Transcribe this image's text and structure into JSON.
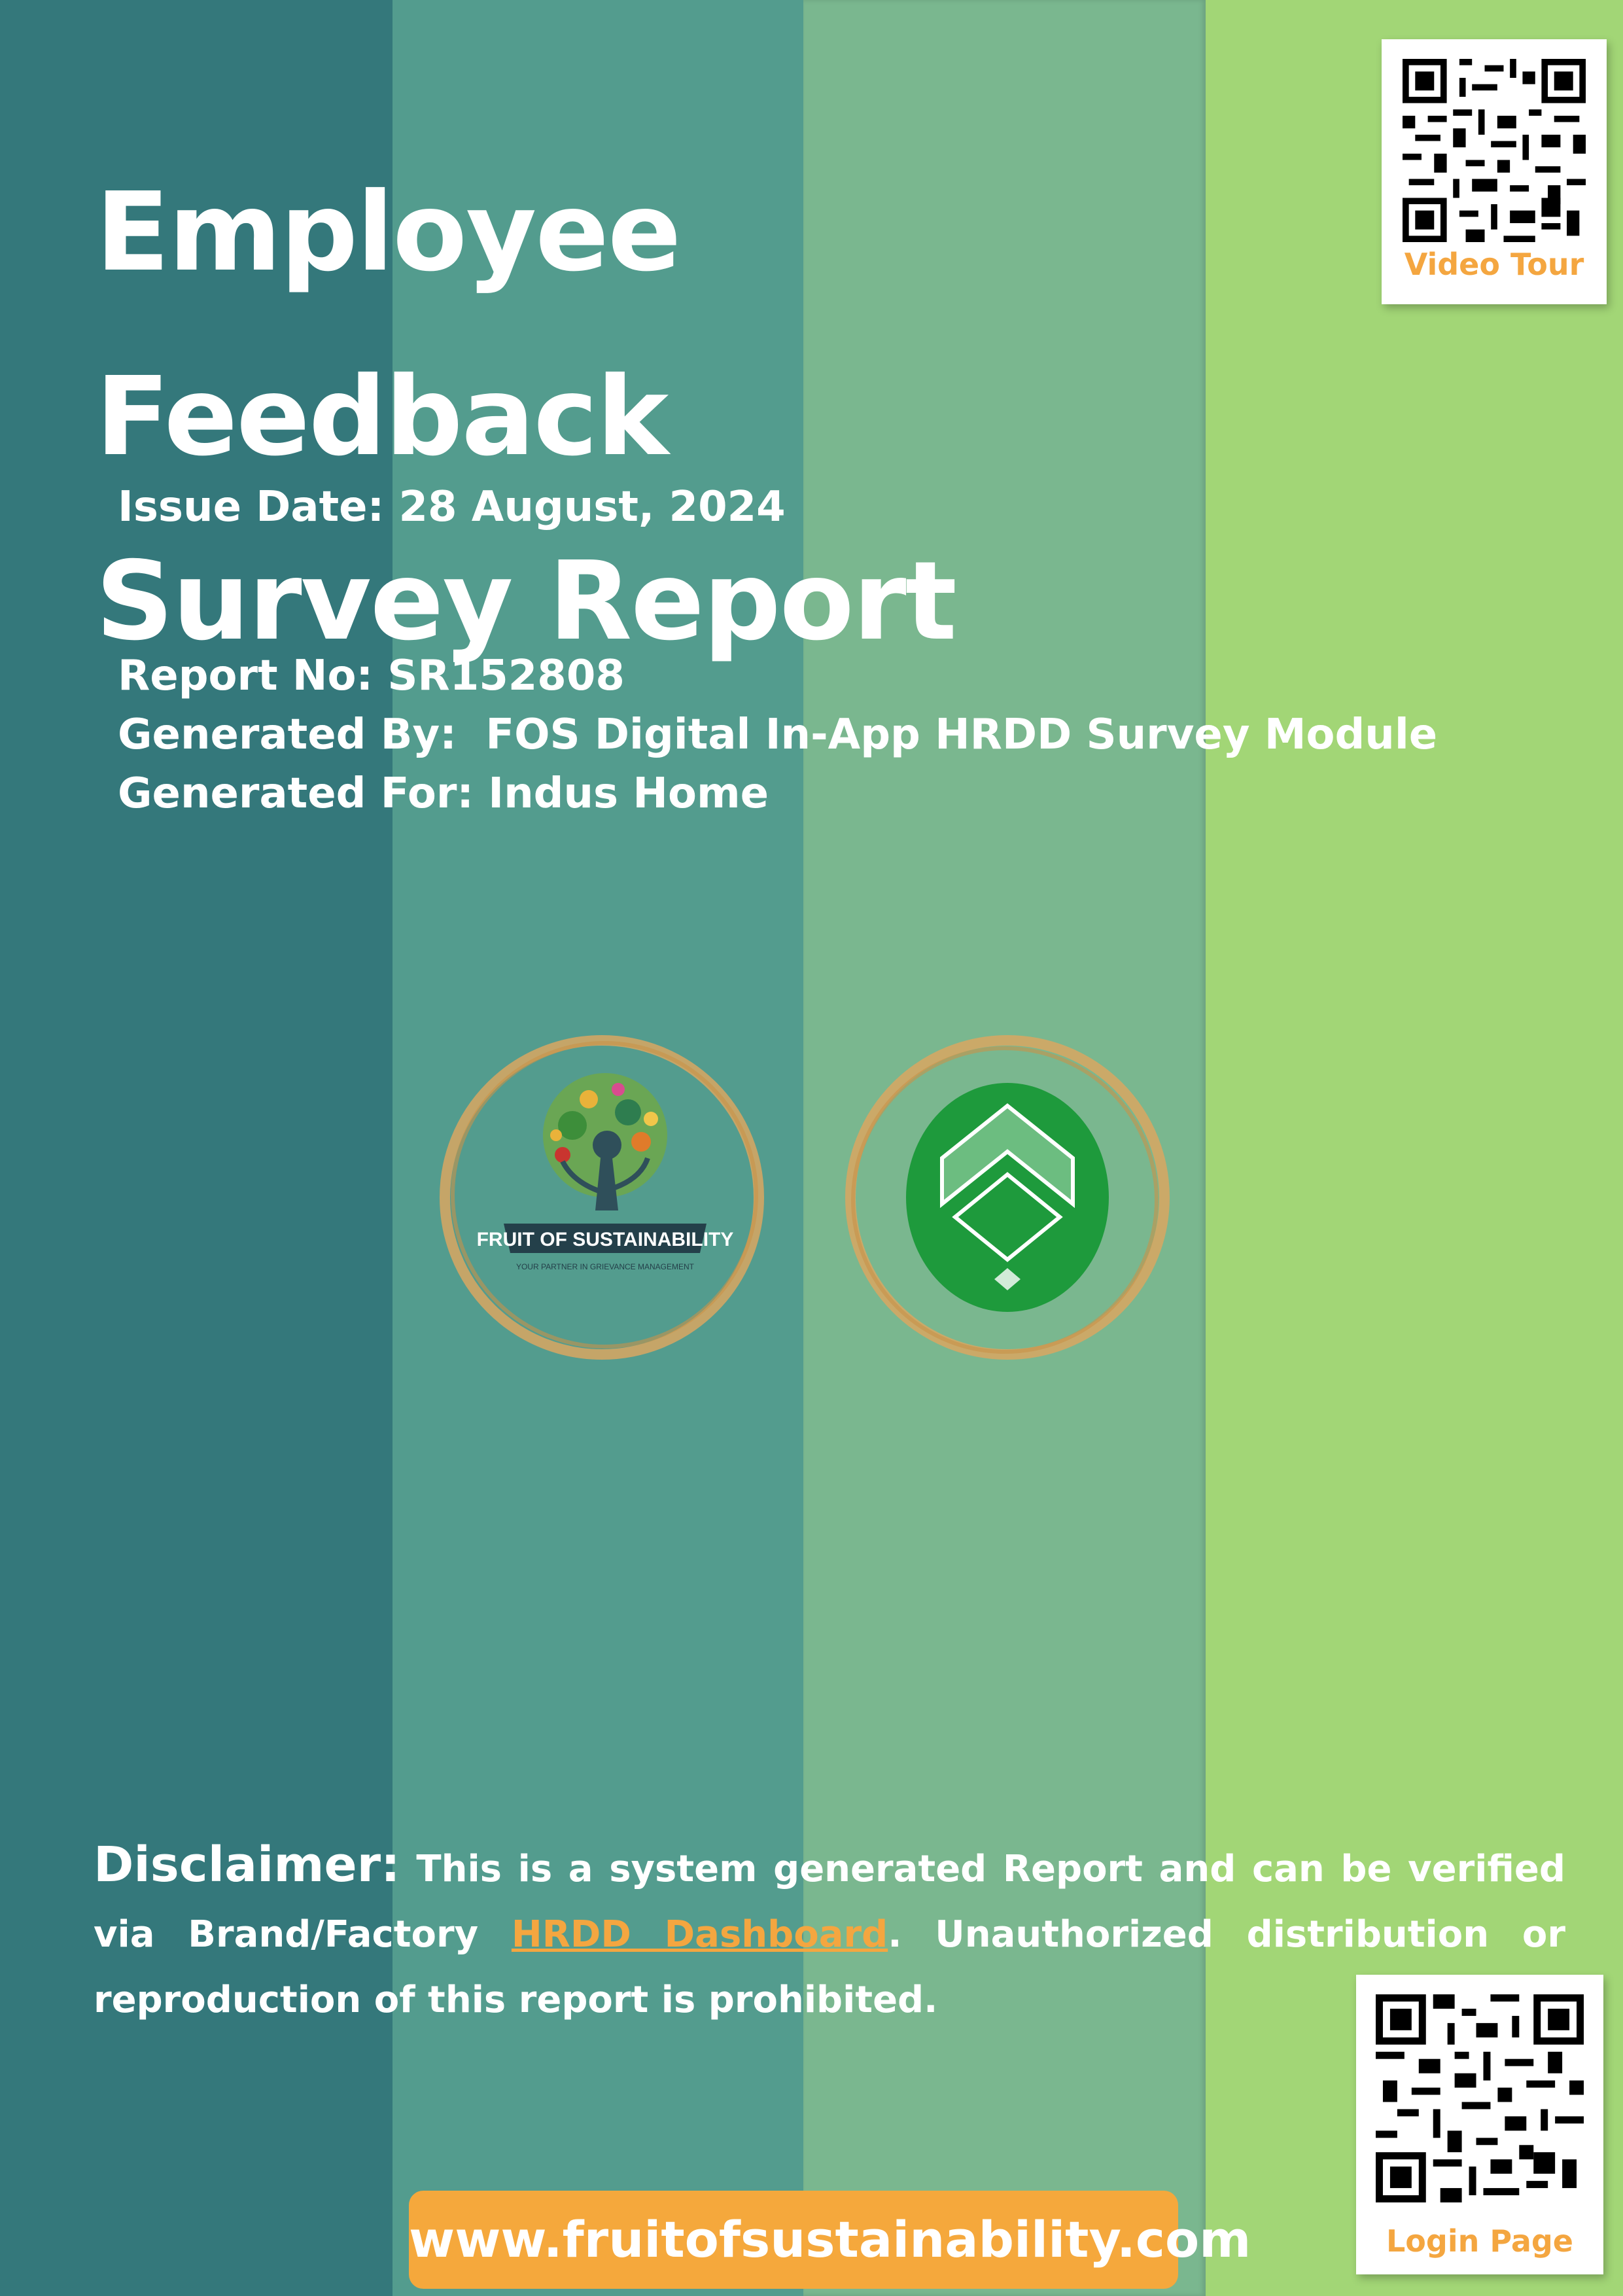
{
  "document": {
    "title_line1": "Employee Feedback",
    "title_line2": "Survey Report",
    "issue_date": "Issue Date: 28 August, 2024",
    "report_no": "Report No: SR152808",
    "generated_by": "Generated By:  FOS Digital In-App HRDD Survey Module",
    "generated_for": "Generated For: Indus Home"
  },
  "qr_codes": {
    "top_label": "Video Tour",
    "bottom_label": "Login Page"
  },
  "logos": {
    "fos_text": "FRUIT OF SUSTAINABILITY",
    "fos_tagline": "YOUR PARTNER IN GRIEVANCE MANAGEMENT"
  },
  "disclaimer": {
    "heading": "Disclaimer:",
    "text_before_link": " This is a system generated Report and can be verified via Brand/Factory ",
    "link_text": "HRDD Dashboard",
    "text_after_link": ". Unauthorized distribution or reproduction of this report is prohibited."
  },
  "footer": {
    "website": "www.fruitofsustainability.com"
  },
  "colors": {
    "stripe_1": "#34787b",
    "stripe_2": "#539c8e",
    "stripe_3": "#7ab78f",
    "stripe_4": "#a2d676",
    "accent_orange": "#f4a640",
    "logo_green": "#1e9a3c"
  }
}
